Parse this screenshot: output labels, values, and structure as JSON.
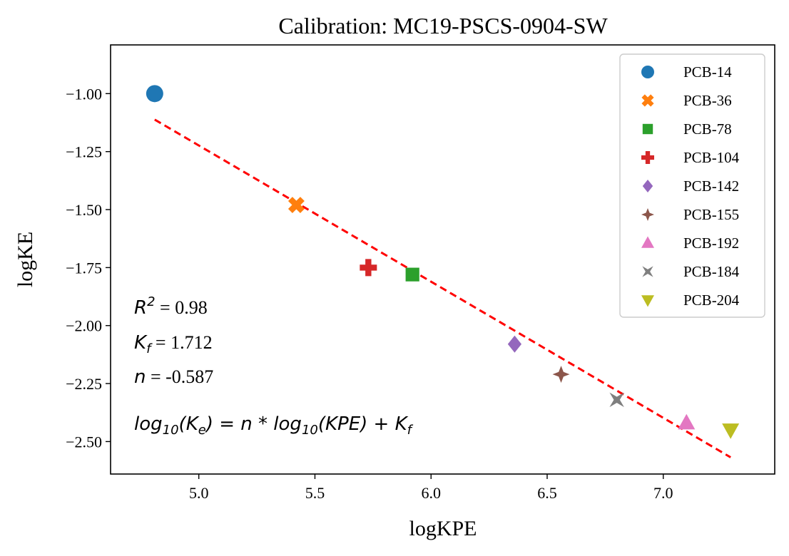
{
  "chart_data": {
    "type": "scatter",
    "title": "Calibration: MC19-PSCS-0904-SW",
    "xlabel": "logKPE",
    "ylabel": "logKE",
    "xlim": [
      4.62,
      7.48
    ],
    "ylim": [
      -2.64,
      -0.79
    ],
    "xticks": [
      5.0,
      5.5,
      6.0,
      6.5,
      7.0
    ],
    "yticks": [
      -1.0,
      -1.25,
      -1.5,
      -1.75,
      -2.0,
      -2.25,
      -2.5
    ],
    "grid": false,
    "legend_position": "top-right",
    "points": [
      {
        "name": "PCB-14",
        "x": 4.81,
        "y": -1.0,
        "marker": "circle",
        "color": "#1f77b4"
      },
      {
        "name": "PCB-36",
        "x": 5.42,
        "y": -1.48,
        "marker": "x-filled",
        "color": "#ff7f0e"
      },
      {
        "name": "PCB-78",
        "x": 5.92,
        "y": -1.78,
        "marker": "square",
        "color": "#2ca02c"
      },
      {
        "name": "PCB-104",
        "x": 5.73,
        "y": -1.75,
        "marker": "plus-filled",
        "color": "#d62728"
      },
      {
        "name": "PCB-142",
        "x": 6.36,
        "y": -2.08,
        "marker": "diamond",
        "color": "#9467bd"
      },
      {
        "name": "PCB-155",
        "x": 6.56,
        "y": -2.21,
        "marker": "star4",
        "color": "#8c564b"
      },
      {
        "name": "PCB-192",
        "x": 7.1,
        "y": -2.42,
        "marker": "triangle-up",
        "color": "#e377c2"
      },
      {
        "name": "PCB-184",
        "x": 6.8,
        "y": -2.32,
        "marker": "pinwheel",
        "color": "#7f7f7f"
      },
      {
        "name": "PCB-204",
        "x": 7.29,
        "y": -2.45,
        "marker": "triangle-down",
        "color": "#bcbd22"
      }
    ],
    "fit_line": {
      "x": [
        4.81,
        7.29
      ],
      "y": [
        -1.112,
        -2.568
      ],
      "style": "dashed",
      "color": "#ff0000"
    },
    "annotations": {
      "r2_value": " = 0.98",
      "kf_value": " = 1.712",
      "n_value": " = -0.587",
      "equation": "log10(Ke) = n * log10(KPE) + Kf"
    }
  }
}
